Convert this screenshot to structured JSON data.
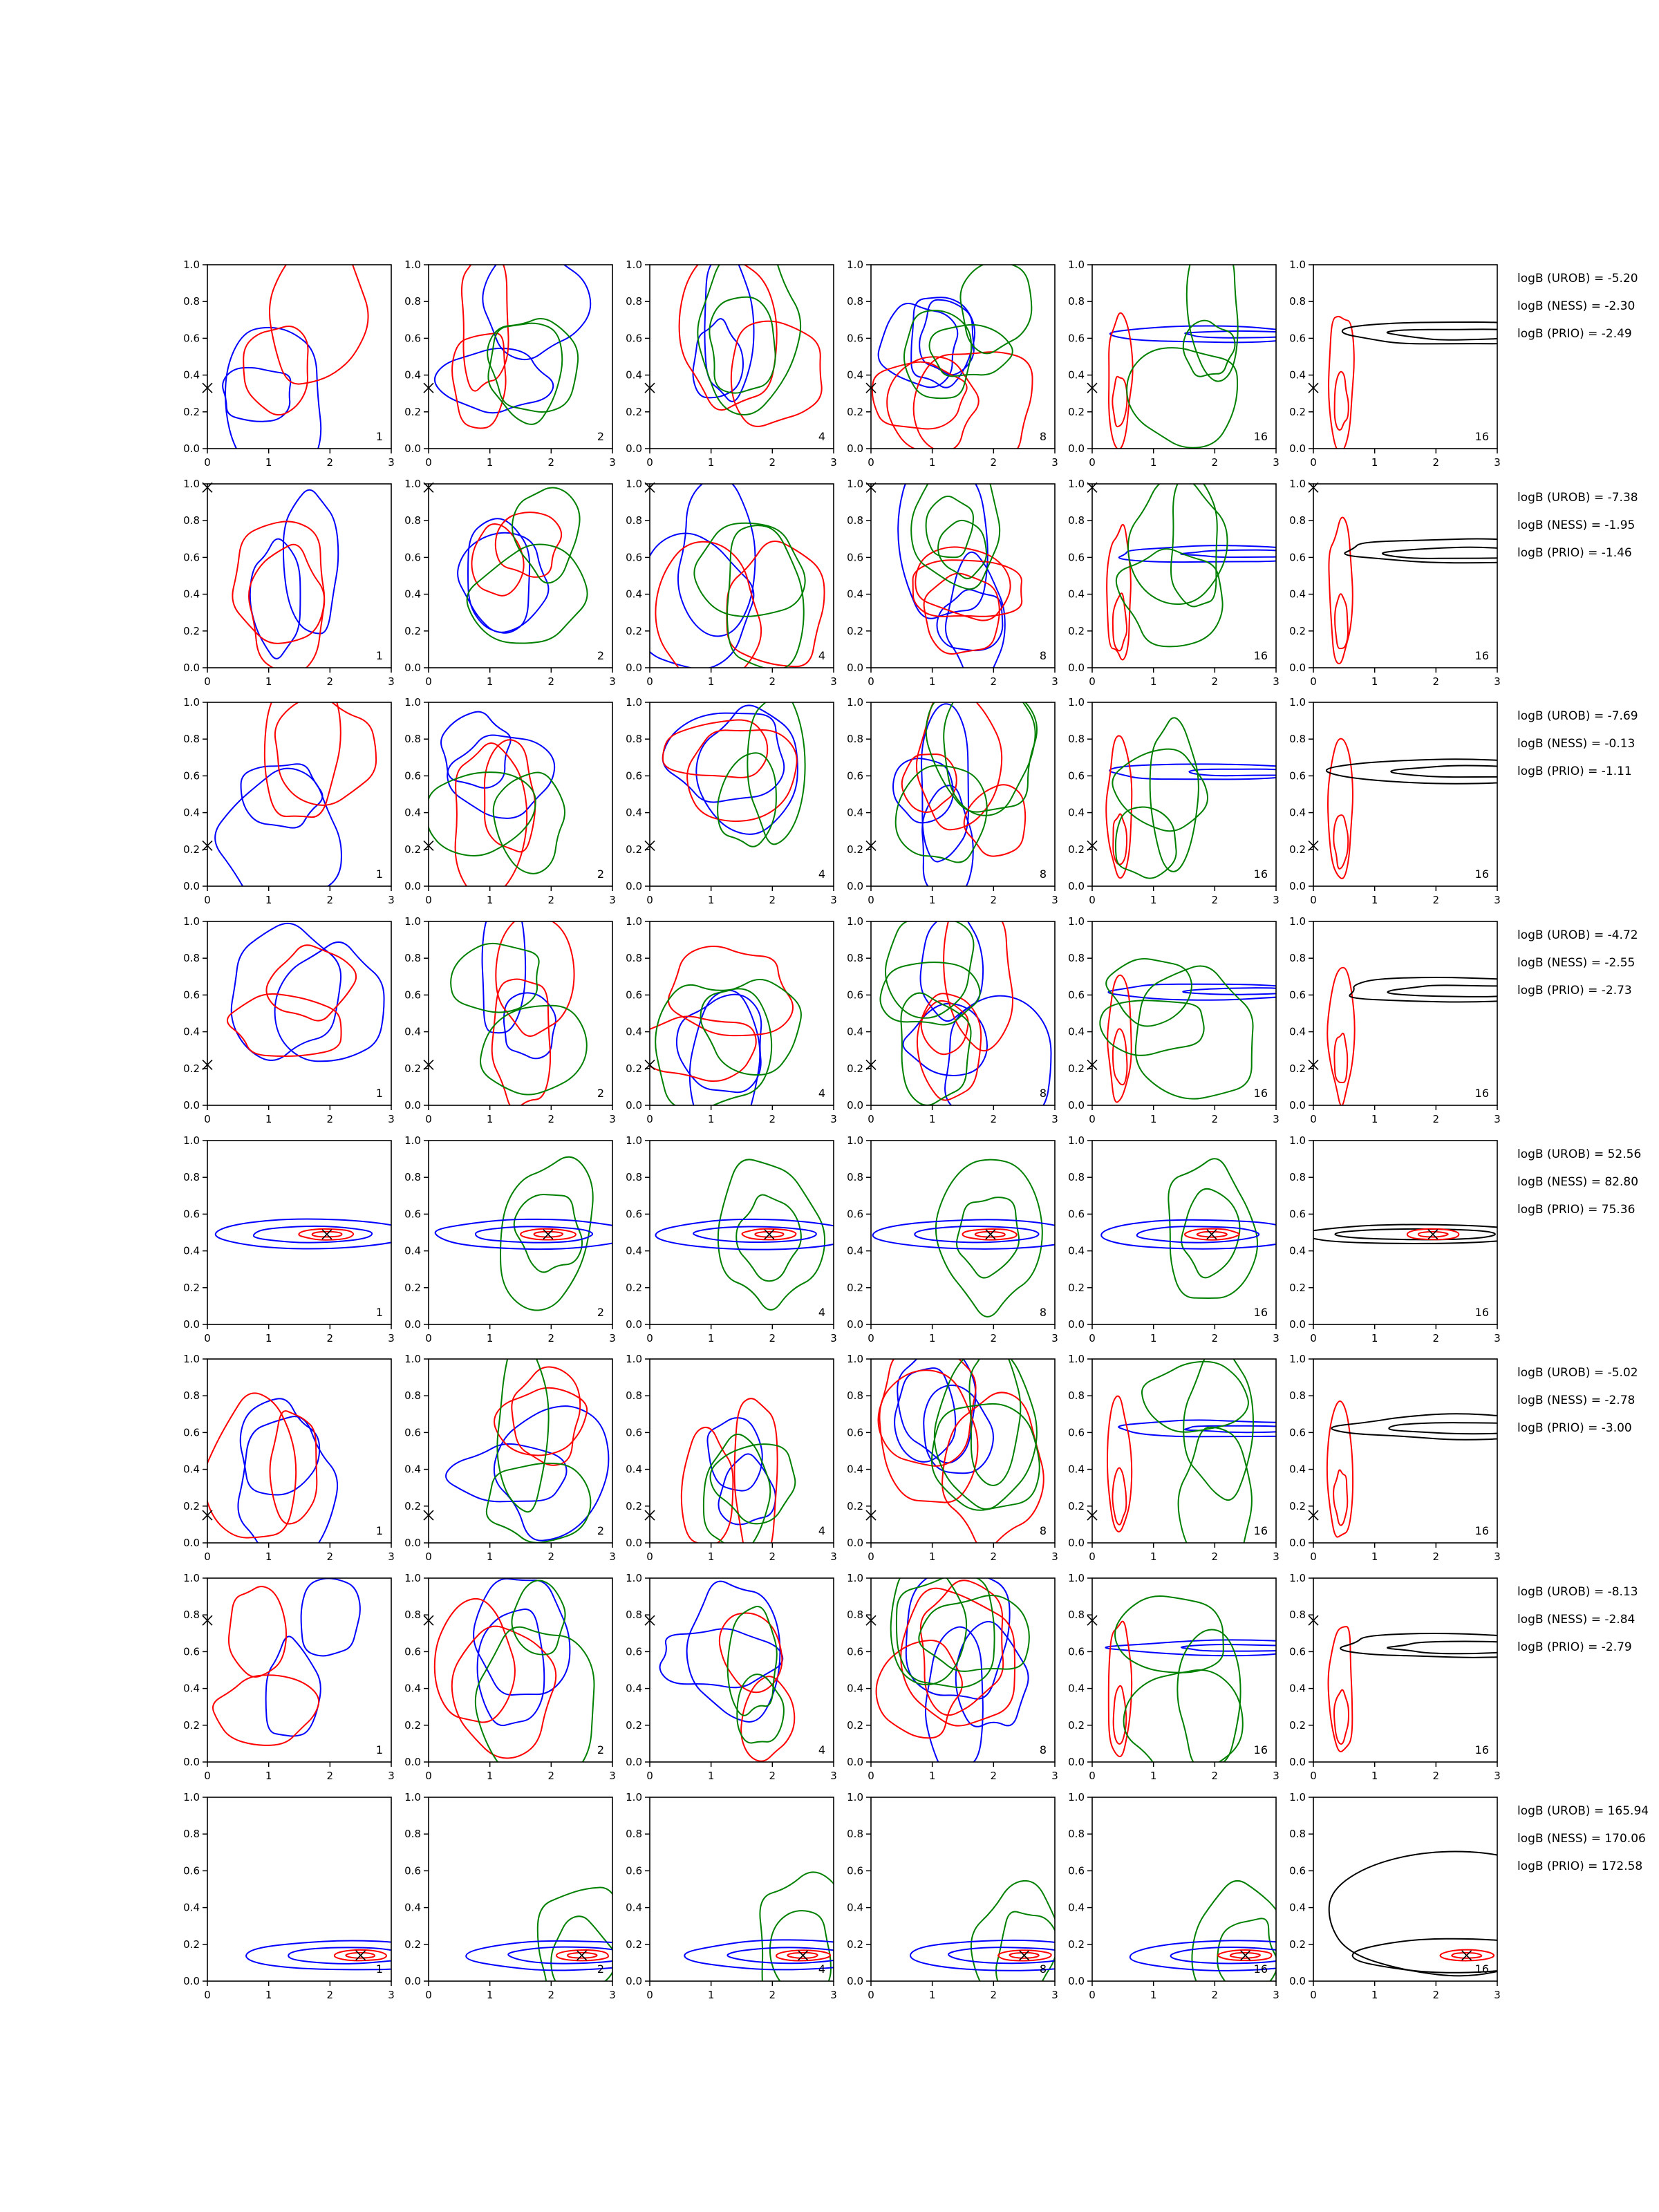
{
  "chart_data": {
    "type": "contour-grid",
    "rows": 8,
    "cols": 6,
    "xlim": [
      0,
      3
    ],
    "ylim": [
      0,
      1
    ],
    "x_ticks": [
      0,
      1,
      2,
      3
    ],
    "y_ticks": [
      0.0,
      0.2,
      0.4,
      0.6,
      0.8,
      1.0
    ],
    "x_tick_labels": [
      "0",
      "1",
      "2",
      "3"
    ],
    "y_tick_labels": [
      "0.0",
      "0.2",
      "0.4",
      "0.6",
      "0.8",
      "1.0"
    ],
    "panel_labels": [
      "1",
      "2",
      "4",
      "8",
      "16",
      "16"
    ],
    "colors": {
      "blue": "#0000ff",
      "red": "#ff0000",
      "green": "#008000",
      "black": "#000000"
    },
    "rows_data": [
      {
        "logB": [
          "logB (UROB) = -5.20",
          "logB (NESS) = -2.30",
          "logB (PRIO) = -2.49"
        ],
        "true_x": 0.0,
        "true_y": 0.33,
        "focused": false
      },
      {
        "logB": [
          "logB (UROB) = -7.38",
          "logB (NESS) = -1.95",
          "logB (PRIO) = -1.46"
        ],
        "true_x": 0.0,
        "true_y": 0.98,
        "focused": false
      },
      {
        "logB": [
          "logB (UROB) = -7.69",
          "logB (NESS) = -0.13",
          "logB (PRIO) = -1.11"
        ],
        "true_x": 0.0,
        "true_y": 0.22,
        "focused": false
      },
      {
        "logB": [
          "logB (UROB) = -4.72",
          "logB (NESS) = -2.55",
          "logB (PRIO) = -2.73"
        ],
        "true_x": 0.0,
        "true_y": 0.22,
        "focused": false
      },
      {
        "logB": [
          "logB (UROB) = 52.56",
          "logB (NESS) = 82.80",
          "logB (PRIO) = 75.36"
        ],
        "true_x": 1.95,
        "true_y": 0.49,
        "focused": true
      },
      {
        "logB": [
          "logB (UROB) = -5.02",
          "logB (NESS) = -2.78",
          "logB (PRIO) = -3.00"
        ],
        "true_x": 0.0,
        "true_y": 0.15,
        "focused": false
      },
      {
        "logB": [
          "logB (UROB) = -8.13",
          "logB (NESS) = -2.84",
          "logB (PRIO) = -2.79"
        ],
        "true_x": 0.0,
        "true_y": 0.77,
        "focused": false
      },
      {
        "logB": [
          "logB (UROB) = 165.94",
          "logB (NESS) = 170.06",
          "logB (PRIO) = 172.58"
        ],
        "true_x": 2.5,
        "true_y": 0.14,
        "focused": true
      }
    ]
  }
}
